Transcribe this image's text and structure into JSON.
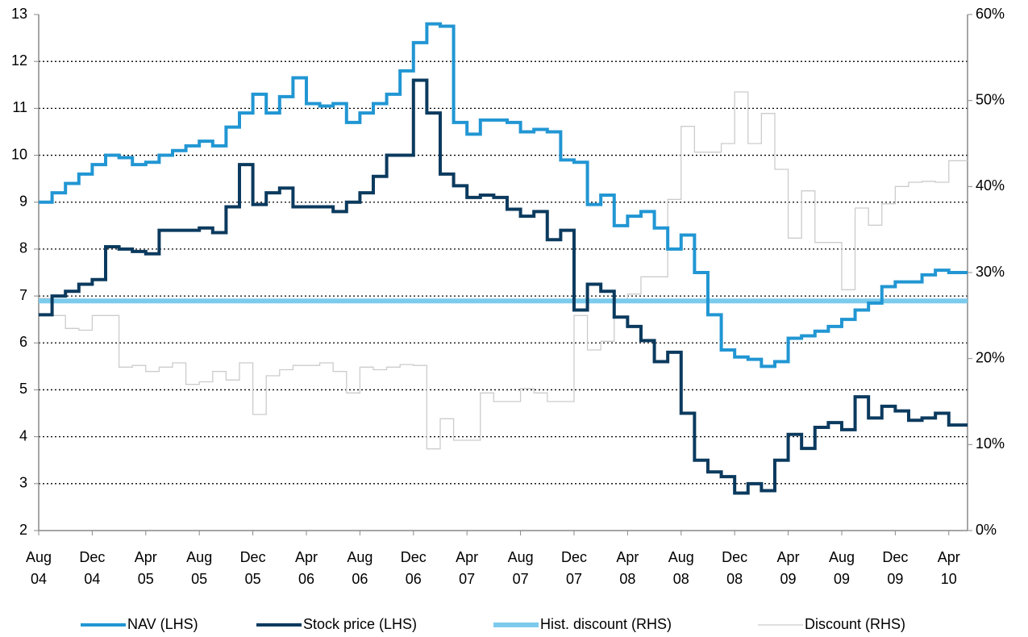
{
  "chart_data": {
    "type": "step-line",
    "categories": [
      "Aug 04",
      null,
      null,
      null,
      "Dec 04",
      null,
      null,
      null,
      "Apr 05",
      null,
      null,
      null,
      "Aug 05",
      null,
      null,
      null,
      "Dec 05",
      null,
      null,
      null,
      "Apr 06",
      null,
      null,
      null,
      "Aug 06",
      null,
      null,
      null,
      "Dec 06",
      null,
      null,
      null,
      "Apr 07",
      null,
      null,
      null,
      "Aug 07",
      null,
      null,
      null,
      "Dec 07",
      null,
      null,
      null,
      "Apr 08",
      null,
      null,
      null,
      "Aug 08",
      null,
      null,
      null,
      "Dec 08",
      null,
      null,
      null,
      "Apr 09",
      null,
      null,
      null,
      "Aug 09",
      null,
      null,
      null,
      "Dec 09",
      null,
      null,
      null,
      "Apr 10",
      null
    ],
    "ylim": [
      2,
      13
    ],
    "yticks": [
      2,
      3,
      4,
      5,
      6,
      7,
      8,
      9,
      10,
      11,
      12,
      13
    ],
    "y2lim": [
      0,
      60
    ],
    "y2ticks": [
      {
        "value": 0,
        "label": "0%"
      },
      {
        "value": 10,
        "label": "10%"
      },
      {
        "value": 20,
        "label": "20%"
      },
      {
        "value": 30,
        "label": "30%"
      },
      {
        "value": 40,
        "label": "40%"
      },
      {
        "value": 50,
        "label": "50%"
      },
      {
        "value": 60,
        "label": "60%"
      }
    ],
    "grid": true,
    "legend": "bottom",
    "series": [
      {
        "name": "NAV (LHS)",
        "color": "#2196d3",
        "values": [
          9.0,
          9.2,
          9.4,
          9.6,
          9.8,
          10.0,
          9.95,
          9.8,
          9.85,
          10.0,
          10.1,
          10.2,
          10.3,
          10.2,
          10.6,
          10.9,
          11.3,
          10.9,
          11.25,
          11.65,
          11.1,
          11.05,
          11.1,
          10.7,
          10.9,
          11.1,
          11.3,
          11.8,
          12.4,
          12.8,
          12.75,
          10.7,
          10.45,
          10.75,
          10.75,
          10.7,
          10.5,
          10.55,
          10.5,
          9.9,
          9.85,
          8.95,
          9.15,
          8.5,
          8.7,
          8.8,
          8.45,
          8.0,
          8.3,
          7.5,
          6.6,
          5.85,
          5.7,
          5.65,
          5.5,
          5.6,
          6.1,
          6.15,
          6.25,
          6.35,
          6.5,
          6.7,
          6.85,
          7.2,
          7.3,
          7.3,
          7.45,
          7.55,
          7.5,
          7.5
        ]
      },
      {
        "name": "Stock price (LHS)",
        "color": "#0b3a5e",
        "values": [
          6.6,
          7.0,
          7.1,
          7.25,
          7.35,
          8.05,
          8.0,
          7.95,
          7.9,
          8.4,
          8.4,
          8.4,
          8.45,
          8.35,
          8.9,
          9.8,
          8.95,
          9.2,
          9.3,
          8.9,
          8.9,
          8.9,
          8.8,
          9.0,
          9.2,
          9.55,
          10.0,
          10.0,
          11.6,
          10.9,
          9.6,
          9.35,
          9.1,
          9.15,
          9.1,
          8.85,
          8.7,
          8.8,
          8.2,
          8.4,
          6.7,
          7.25,
          7.1,
          6.55,
          6.35,
          6.05,
          5.6,
          5.8,
          4.5,
          3.5,
          3.25,
          3.15,
          2.8,
          3.0,
          2.85,
          3.5,
          4.05,
          3.75,
          4.2,
          4.3,
          4.15,
          4.85,
          4.4,
          4.65,
          4.55,
          4.35,
          4.4,
          4.5,
          4.25,
          4.25
        ]
      },
      {
        "name": "Hist. discount (RHS)",
        "color": "#7ccbec",
        "axis": "y2",
        "values": [
          26.7,
          26.7,
          26.7,
          26.7,
          26.7,
          26.7,
          26.7,
          26.7,
          26.7,
          26.7,
          26.7,
          26.7,
          26.7,
          26.7,
          26.7,
          26.7,
          26.7,
          26.7,
          26.7,
          26.7,
          26.7,
          26.7,
          26.7,
          26.7,
          26.7,
          26.7,
          26.7,
          26.7,
          26.7,
          26.7,
          26.7,
          26.7,
          26.7,
          26.7,
          26.7,
          26.7,
          26.7,
          26.7,
          26.7,
          26.7,
          26.7,
          26.7,
          26.7,
          26.7,
          26.7,
          26.7,
          26.7,
          26.7,
          26.7,
          26.7,
          26.7,
          26.7,
          26.7,
          26.7,
          26.7,
          26.7,
          26.7,
          26.7,
          26.7,
          26.7,
          26.7,
          26.7,
          26.7,
          26.7,
          26.7,
          26.7,
          26.7,
          26.7,
          26.7,
          26.7
        ]
      },
      {
        "name": "Discount (RHS)",
        "color": "#cccccc",
        "axis": "y2",
        "values": [
          27,
          25,
          23.5,
          23.3,
          25,
          25,
          19,
          19.2,
          18.5,
          19,
          19.5,
          17,
          17.3,
          18.5,
          17.5,
          19.5,
          13.5,
          18,
          18.7,
          19.2,
          19.2,
          19.5,
          18.5,
          16,
          19,
          18.7,
          19,
          19.3,
          19.2,
          9.5,
          13,
          10.5,
          10.5,
          16,
          15,
          15,
          16.5,
          16,
          15,
          15,
          25,
          21,
          22,
          26.5,
          27.5,
          29.5,
          29.5,
          38.5,
          47,
          44,
          44,
          45,
          51,
          45,
          48.5,
          42,
          34,
          39.5,
          33.5,
          33.5,
          28,
          37.5,
          35.5,
          38,
          40,
          40.5,
          40.6,
          40.5,
          43,
          43
        ]
      }
    ]
  }
}
